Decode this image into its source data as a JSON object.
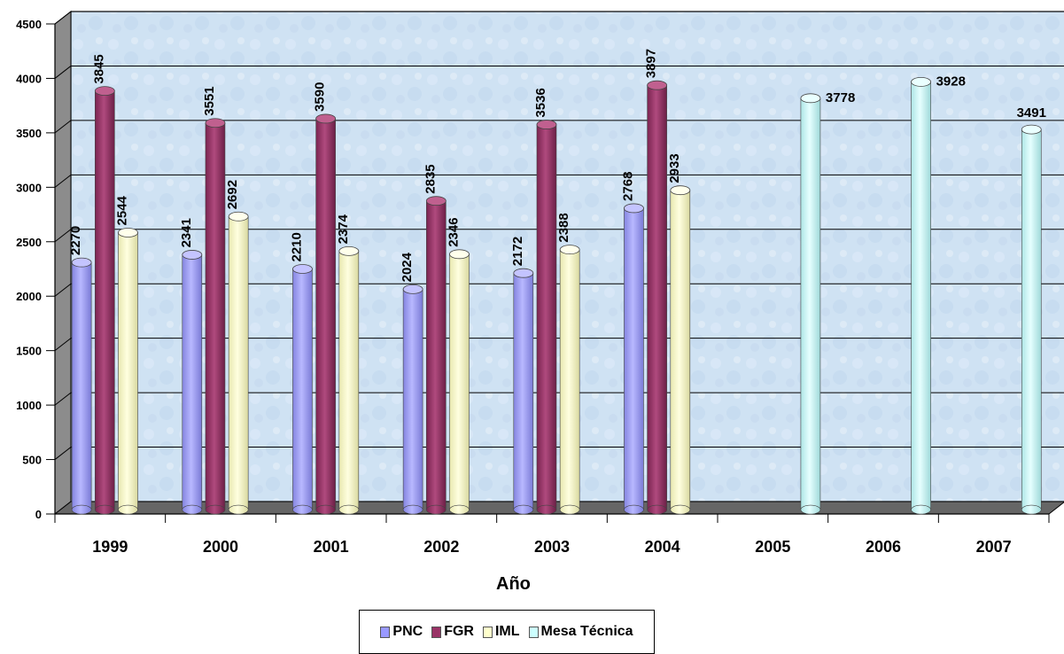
{
  "chart_data": {
    "type": "bar",
    "title": "",
    "xlabel": "Año",
    "ylabel": "",
    "ylim": [
      0,
      4500
    ],
    "yticks": [
      0,
      500,
      1000,
      1500,
      2000,
      2500,
      3000,
      3500,
      4000,
      4500
    ],
    "categories": [
      "1999",
      "2000",
      "2001",
      "2002",
      "2003",
      "2004",
      "2005",
      "2006",
      "2007"
    ],
    "series": [
      {
        "name": "PNC",
        "color": "#9999ff",
        "values": [
          2270,
          2341,
          2210,
          2024,
          2172,
          2768,
          null,
          null,
          null
        ]
      },
      {
        "name": "FGR",
        "color": "#993366",
        "values": [
          3845,
          3551,
          3590,
          2835,
          3536,
          3897,
          null,
          null,
          null
        ]
      },
      {
        "name": "IML",
        "color": "#ffffcc",
        "values": [
          2544,
          2692,
          2374,
          2346,
          2388,
          2933,
          null,
          null,
          null
        ]
      },
      {
        "name": "Mesa Técnica",
        "color": "#ccffff",
        "values": [
          null,
          null,
          null,
          null,
          null,
          null,
          3778,
          3928,
          3491
        ]
      }
    ],
    "grid": true,
    "legend": "bottom",
    "style": "3d-cylinder"
  }
}
